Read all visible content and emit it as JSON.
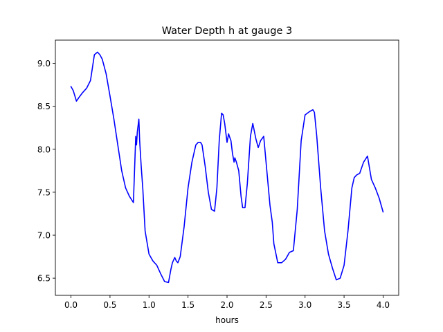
{
  "chart_data": {
    "type": "line",
    "title": "Water Depth h at gauge 3",
    "xlabel": "hours",
    "ylabel": "",
    "xlim": [
      -0.2,
      4.2
    ],
    "ylim": [
      6.3,
      9.27
    ],
    "xticks": [
      0.0,
      0.5,
      1.0,
      1.5,
      2.0,
      2.5,
      3.0,
      3.5,
      4.0
    ],
    "xtick_labels": [
      "0.0",
      "0.5",
      "1.0",
      "1.5",
      "2.0",
      "2.5",
      "3.0",
      "3.5",
      "4.0"
    ],
    "yticks": [
      6.5,
      7.0,
      7.5,
      8.0,
      8.5,
      9.0
    ],
    "ytick_labels": [
      "6.5",
      "7.0",
      "7.5",
      "8.0",
      "8.5",
      "9.0"
    ],
    "grid": false,
    "legend": "none",
    "series": [
      {
        "color": "#0000ff",
        "x": [
          0.0,
          0.03,
          0.07,
          0.1,
          0.15,
          0.2,
          0.25,
          0.3,
          0.34,
          0.37,
          0.4,
          0.45,
          0.5,
          0.55,
          0.6,
          0.65,
          0.7,
          0.75,
          0.8,
          0.83,
          0.84,
          0.85,
          0.87,
          0.88,
          0.9,
          0.92,
          0.95,
          1.0,
          1.05,
          1.1,
          1.15,
          1.2,
          1.25,
          1.28,
          1.3,
          1.33,
          1.35,
          1.37,
          1.4,
          1.45,
          1.5,
          1.55,
          1.6,
          1.63,
          1.66,
          1.68,
          1.72,
          1.76,
          1.8,
          1.84,
          1.87,
          1.9,
          1.93,
          1.95,
          1.97,
          2.0,
          2.02,
          2.03,
          2.05,
          2.07,
          2.09,
          2.1,
          2.12,
          2.15,
          2.18,
          2.2,
          2.23,
          2.26,
          2.3,
          2.33,
          2.37,
          2.4,
          2.43,
          2.47,
          2.5,
          2.53,
          2.55,
          2.58,
          2.6,
          2.65,
          2.7,
          2.75,
          2.8,
          2.85,
          2.9,
          2.95,
          3.0,
          3.03,
          3.06,
          3.1,
          3.12,
          3.15,
          3.2,
          3.25,
          3.3,
          3.35,
          3.4,
          3.45,
          3.5,
          3.55,
          3.6,
          3.63,
          3.66,
          3.7,
          3.75,
          3.8,
          3.85,
          3.9,
          3.95,
          4.0
        ],
        "y": [
          8.73,
          8.68,
          8.56,
          8.6,
          8.66,
          8.71,
          8.8,
          9.1,
          9.13,
          9.1,
          9.05,
          8.88,
          8.62,
          8.35,
          8.05,
          7.75,
          7.55,
          7.45,
          7.38,
          8.15,
          8.05,
          8.2,
          8.35,
          8.1,
          7.8,
          7.55,
          7.05,
          6.78,
          6.7,
          6.65,
          6.55,
          6.46,
          6.45,
          6.6,
          6.68,
          6.74,
          6.7,
          6.68,
          6.75,
          7.1,
          7.55,
          7.85,
          8.05,
          8.08,
          8.08,
          8.05,
          7.8,
          7.5,
          7.3,
          7.28,
          7.55,
          8.1,
          8.42,
          8.4,
          8.3,
          8.08,
          8.18,
          8.15,
          8.1,
          7.95,
          7.85,
          7.9,
          7.85,
          7.75,
          7.45,
          7.32,
          7.32,
          7.6,
          8.15,
          8.3,
          8.12,
          8.02,
          8.1,
          8.15,
          7.85,
          7.55,
          7.35,
          7.15,
          6.9,
          6.68,
          6.68,
          6.72,
          6.8,
          6.82,
          7.3,
          8.1,
          8.4,
          8.42,
          8.44,
          8.46,
          8.43,
          8.15,
          7.55,
          7.05,
          6.78,
          6.62,
          6.48,
          6.5,
          6.65,
          7.05,
          7.55,
          7.67,
          7.7,
          7.72,
          7.85,
          7.92,
          7.65,
          7.55,
          7.43,
          7.27
        ]
      }
    ]
  }
}
